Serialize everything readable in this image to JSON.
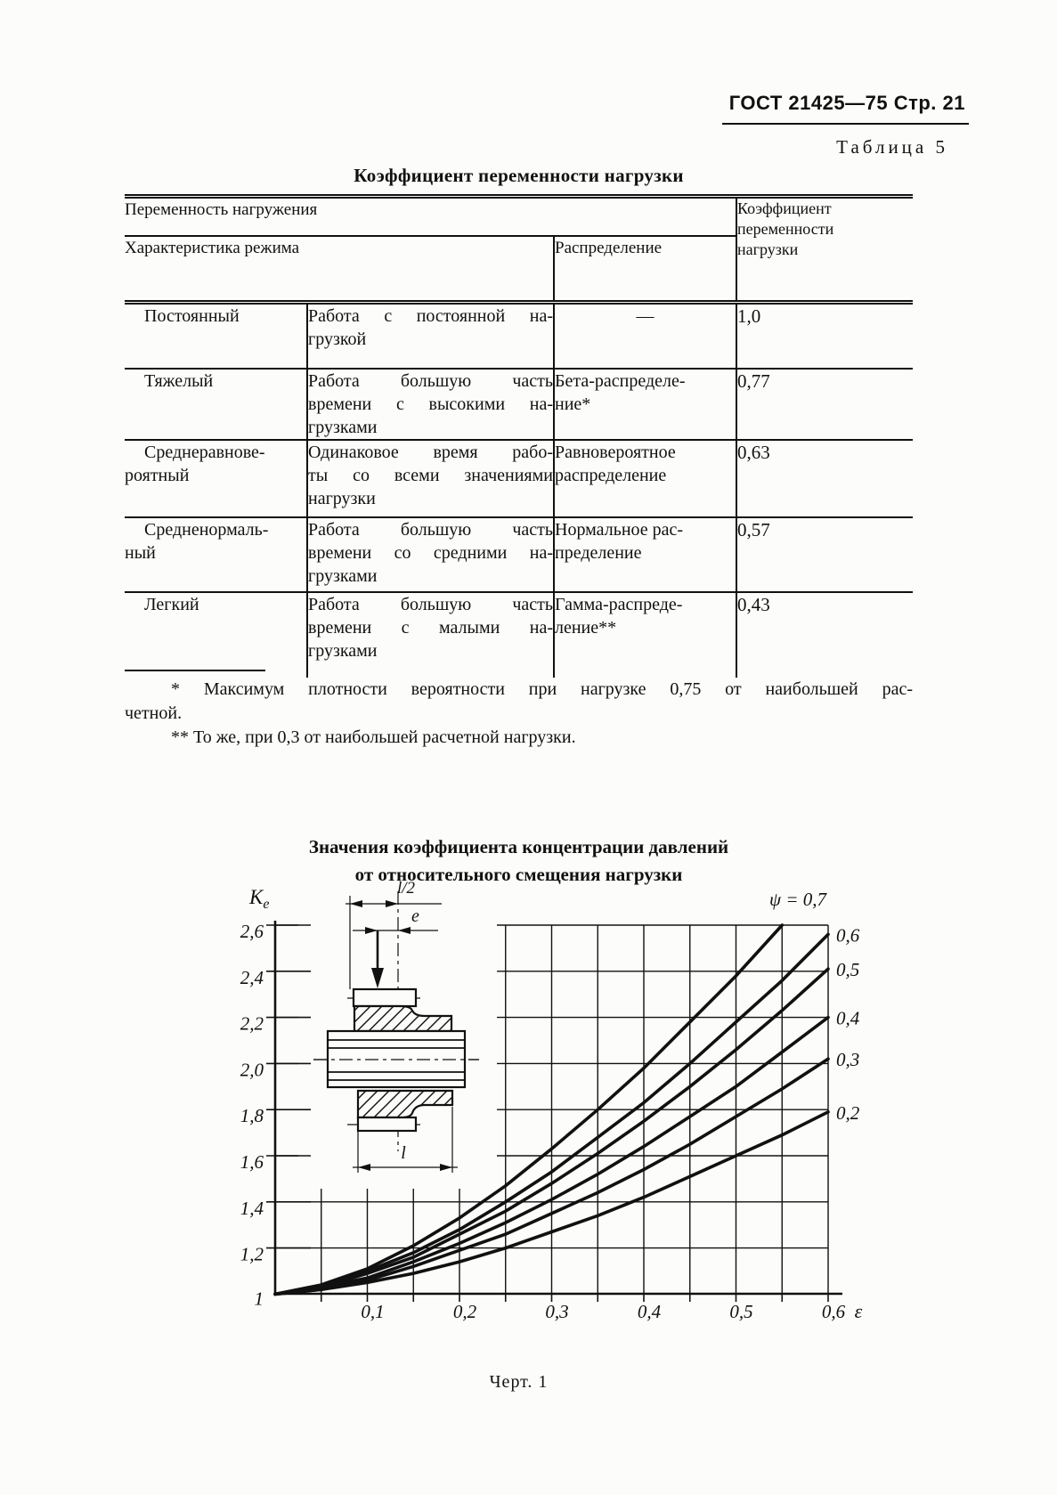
{
  "colors": {
    "ink": "#111111",
    "paper": "#fcfcfa"
  },
  "page": {
    "header": "ГОСТ 21425—75 Стр. 21",
    "table_label": "Таблица 5",
    "figure_caption": "Черт. 1"
  },
  "table": {
    "title": "Коэффициент переменности нагрузки",
    "header": {
      "group": "Переменность нагружения",
      "mode": "Характеристика режима",
      "distribution": "Распределение",
      "coef_lines": [
        "Коэффициент",
        "переменности",
        "нагрузки"
      ]
    },
    "rows": [
      {
        "regime": [
          "Постоянный"
        ],
        "description": [
          "Работа с постоянной на-",
          "грузкой"
        ],
        "distribution": [
          "—"
        ],
        "dist_centered": true,
        "coefficient": "1,0"
      },
      {
        "regime": [
          "Тяжелый"
        ],
        "description": [
          "Работа большую часть",
          "времени с высокими на-",
          "грузками"
        ],
        "distribution": [
          "Бета-распределе-",
          "ние*"
        ],
        "dist_centered": false,
        "coefficient": "0,77"
      },
      {
        "regime": [
          "Среднеравнове-",
          "роятный"
        ],
        "description": [
          "Одинаковое время рабо-",
          "ты со всеми значениями",
          "нагрузки"
        ],
        "distribution": [
          "Равновероятное",
          "распределение"
        ],
        "dist_centered": false,
        "coefficient": "0,63"
      },
      {
        "regime": [
          "Средненормаль-",
          "ный"
        ],
        "description": [
          "Работа большую часть",
          "времени со средними на-",
          "грузками"
        ],
        "distribution": [
          "Нормальное рас-",
          "пределение"
        ],
        "dist_centered": false,
        "coefficient": "0,57"
      },
      {
        "regime": [
          "Легкий"
        ],
        "description": [
          "Работа большую часть",
          "времени с малыми на-",
          "грузками"
        ],
        "distribution": [
          "Гамма-распреде-",
          "ление**"
        ],
        "dist_centered": false,
        "coefficient": "0,43"
      }
    ]
  },
  "footnotes": [
    [
      "* Максимум плотности вероятности при нагрузке 0,75 от наибольшей рас-",
      "четной."
    ],
    [
      "** То же, при 0,3 от наибольшей расчетной нагрузки."
    ]
  ],
  "chart": {
    "title_lines": [
      "Значения коэффициента концентрации давлений",
      "от относительного смещения нагрузки"
    ],
    "y_axis_label": {
      "main": "K",
      "sub": "e"
    },
    "x_axis_label": "ε",
    "inset_labels": {
      "top": "l/2",
      "offset": "e",
      "bottom": "l"
    }
  },
  "chart_data": {
    "type": "line",
    "title": "Значения коэффициента концентрации давлений от относительного смещения нагрузки",
    "xlabel": "ε",
    "ylabel": "Ke",
    "xlim": [
      0,
      0.6
    ],
    "ylim": [
      1.0,
      2.6
    ],
    "grid": {
      "on": true,
      "x_step": 0.05,
      "y_step": 0.2
    },
    "x_ticks": [
      0.1,
      0.2,
      0.3,
      0.4,
      0.5,
      0.6
    ],
    "x_tick_labels": [
      "0,1",
      "0,2",
      "0,3",
      "0,4",
      "0,5",
      "0,6"
    ],
    "y_ticks": [
      1,
      1.2,
      1.4,
      1.6,
      1.8,
      2.0,
      2.2,
      2.4,
      2.6
    ],
    "y_tick_labels": [
      "1",
      "1,2",
      "1,4",
      "1,6",
      "1,8",
      "2,0",
      "2,2",
      "2,4",
      "2,6"
    ],
    "legend_position": "right-edge-labels",
    "series": [
      {
        "name": "psi=0.7",
        "label": "ψ = 0,7",
        "placement": "top",
        "x": [
          0,
          0.05,
          0.1,
          0.15,
          0.2,
          0.25,
          0.3,
          0.35,
          0.4,
          0.45,
          0.5,
          0.55
        ],
        "y": [
          1,
          1.04,
          1.11,
          1.21,
          1.33,
          1.47,
          1.63,
          1.8,
          1.98,
          2.18,
          2.38,
          2.6
        ]
      },
      {
        "name": "psi=0.6",
        "label": "0,6",
        "placement": "right",
        "x": [
          0,
          0.05,
          0.1,
          0.15,
          0.2,
          0.25,
          0.3,
          0.35,
          0.4,
          0.45,
          0.5,
          0.55,
          0.6
        ],
        "y": [
          1,
          1.03,
          1.1,
          1.18,
          1.28,
          1.4,
          1.53,
          1.68,
          1.83,
          2.0,
          2.18,
          2.36,
          2.56
        ]
      },
      {
        "name": "psi=0.5",
        "label": "0,5",
        "placement": "right",
        "x": [
          0,
          0.05,
          0.1,
          0.15,
          0.2,
          0.25,
          0.3,
          0.35,
          0.4,
          0.45,
          0.5,
          0.55,
          0.6
        ],
        "y": [
          1,
          1.03,
          1.09,
          1.16,
          1.26,
          1.36,
          1.48,
          1.61,
          1.75,
          1.9,
          2.06,
          2.23,
          2.41
        ]
      },
      {
        "name": "psi=0.4",
        "label": "0,4",
        "placement": "right",
        "x": [
          0,
          0.05,
          0.1,
          0.15,
          0.2,
          0.25,
          0.3,
          0.35,
          0.4,
          0.45,
          0.5,
          0.55,
          0.6
        ],
        "y": [
          1,
          1.03,
          1.07,
          1.14,
          1.22,
          1.31,
          1.41,
          1.52,
          1.64,
          1.77,
          1.9,
          2.05,
          2.2
        ]
      },
      {
        "name": "psi=0.3",
        "label": "0,3",
        "placement": "right",
        "x": [
          0,
          0.05,
          0.1,
          0.15,
          0.2,
          0.25,
          0.3,
          0.35,
          0.4,
          0.45,
          0.5,
          0.55,
          0.6
        ],
        "y": [
          1,
          1.02,
          1.06,
          1.12,
          1.19,
          1.26,
          1.35,
          1.44,
          1.54,
          1.65,
          1.77,
          1.89,
          2.02
        ]
      },
      {
        "name": "psi=0.2",
        "label": "0,2",
        "placement": "right",
        "x": [
          0,
          0.05,
          0.1,
          0.15,
          0.2,
          0.25,
          0.3,
          0.35,
          0.4,
          0.45,
          0.5,
          0.55,
          0.6
        ],
        "y": [
          1,
          1.02,
          1.05,
          1.09,
          1.14,
          1.2,
          1.27,
          1.34,
          1.42,
          1.51,
          1.6,
          1.69,
          1.79
        ]
      }
    ]
  }
}
